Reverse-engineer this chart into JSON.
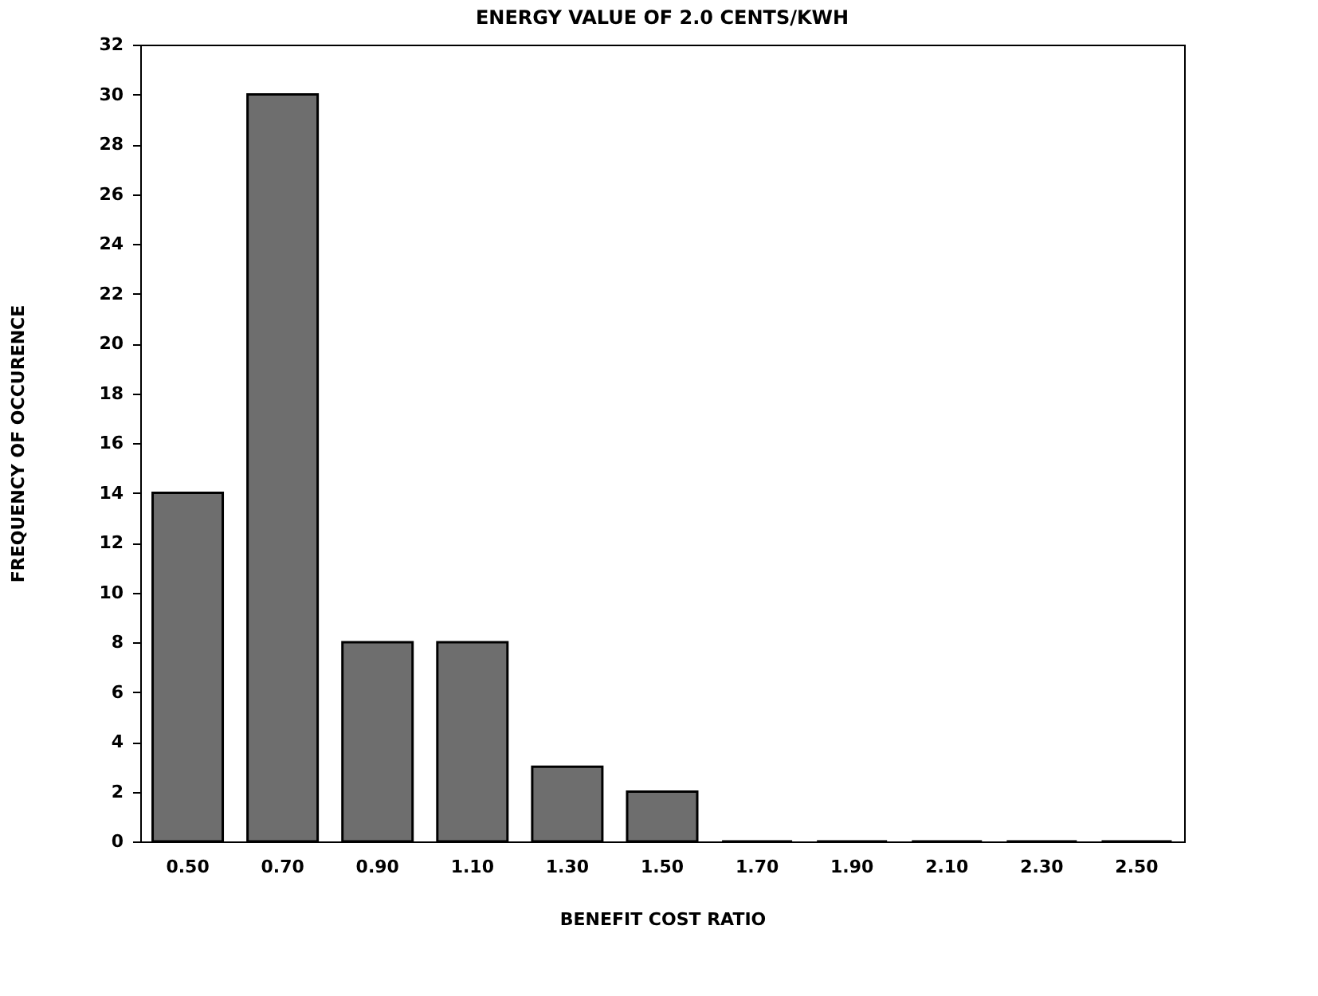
{
  "chart_data": {
    "type": "bar",
    "title": "ENERGY VALUE OF 2.0 CENTS/KWH",
    "xlabel": "BENEFIT COST RATIO",
    "ylabel": "FREQUENCY OF OCCURENCE",
    "categories": [
      "0.50",
      "0.70",
      "0.90",
      "1.10",
      "1.30",
      "1.50",
      "1.70",
      "1.90",
      "2.10",
      "2.30",
      "2.50"
    ],
    "values": [
      14,
      30,
      8,
      8,
      3,
      2,
      0,
      0,
      0,
      0,
      0
    ],
    "color": "#6e6e6e",
    "ylim": [
      0,
      32
    ],
    "yticks": [
      0,
      2,
      4,
      6,
      8,
      10,
      12,
      14,
      16,
      18,
      20,
      22,
      24,
      26,
      28,
      30,
      32
    ],
    "grid": false
  }
}
